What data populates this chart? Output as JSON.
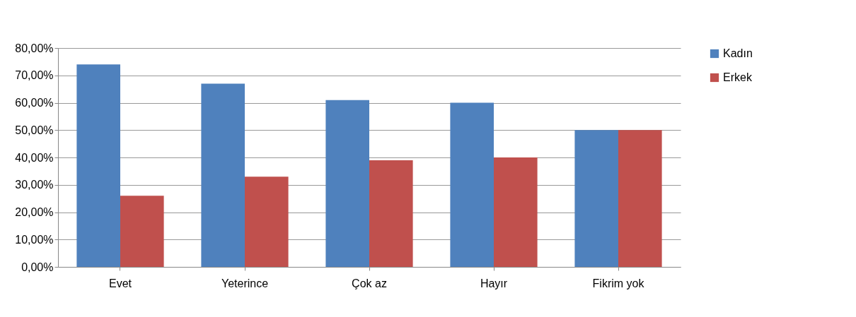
{
  "chart_data": {
    "type": "bar",
    "categories": [
      "Evet",
      "Yeterince",
      "Çok az",
      "Hayır",
      "Fikrim yok"
    ],
    "series": [
      {
        "name": "Kadın",
        "color": "#4f81bd",
        "values": [
          74,
          67,
          61,
          60,
          50
        ]
      },
      {
        "name": "Erkek",
        "color": "#c0504d",
        "values": [
          26,
          33,
          39,
          40,
          50
        ]
      }
    ],
    "ylim": [
      0,
      80
    ],
    "yticks": [
      {
        "value": 0,
        "label": "0,00%"
      },
      {
        "value": 10,
        "label": "10,00%"
      },
      {
        "value": 20,
        "label": "20,00%"
      },
      {
        "value": 30,
        "label": "30,00%"
      },
      {
        "value": 40,
        "label": "40,00%"
      },
      {
        "value": 50,
        "label": "50,00%"
      },
      {
        "value": 60,
        "label": "60,00%"
      },
      {
        "value": 70,
        "label": "70,00%"
      },
      {
        "value": 80,
        "label": "80,00%"
      }
    ],
    "grid": "y",
    "legend": "right"
  }
}
